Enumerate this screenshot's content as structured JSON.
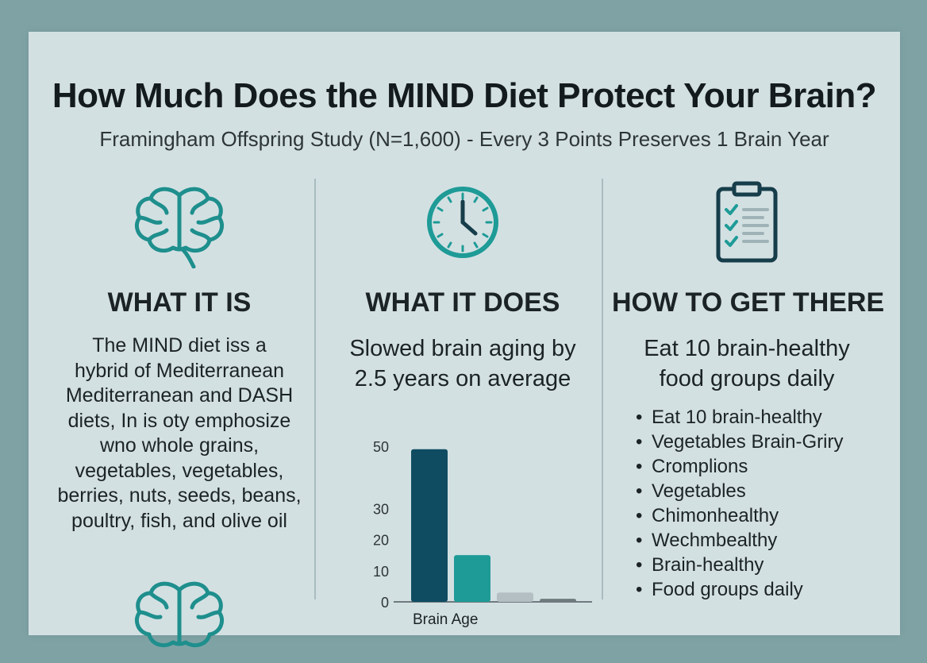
{
  "header": {
    "title": "How Much Does the MIND Diet Protect Your Brain?",
    "subtitle": "Framingham Offspring Study (N=1,600) - Every 3 Points Preserves 1 Brain Year"
  },
  "columns": {
    "what_it_is": {
      "icon": "brain-icon",
      "heading": "WHAT IT IS",
      "lines": [
        "The MIND diet iss a",
        "hybrid of Mediterranean",
        "Mediterranean and DASH",
        "diets, In is oty emphosize",
        "wno whole grains,",
        "vegetables, vegetables,",
        "berries, nuts, seeds, beans,",
        "poultry, fish, and olive oil"
      ]
    },
    "what_it_does": {
      "icon": "clock-icon",
      "heading": "WHAT IT DOES",
      "lines": [
        "Slowed brain aging by",
        "2.5 years on average"
      ]
    },
    "how_to_get_there": {
      "icon": "checklist-icon",
      "heading": "HOW TO GET THERE",
      "lines": [
        "Eat 10 brain-healthy",
        "food groups daily"
      ],
      "bullets": [
        "Eat 10 brain-healthy",
        "Vegetables Brain-Griry",
        "Cromplions",
        "Vegetables",
        "Chimonhealthy",
        "Wechmbealthy",
        "Brain-healthy",
        "Food groups daily"
      ]
    }
  },
  "colors": {
    "background": "#7fa3a5",
    "card": "#d3e0e2",
    "teal": "#1e9b97",
    "dark_teal": "#0f4c62",
    "gray": "#b3bfc2",
    "dark_gray": "#6f7a7e"
  },
  "chart_data": {
    "type": "bar",
    "categories": [
      "",
      "",
      "",
      ""
    ],
    "values": [
      49,
      15,
      3,
      1
    ],
    "colors": [
      "#0f4c62",
      "#1e9b97",
      "#b3bfc2",
      "#6f7a7e"
    ],
    "yticks": [
      "0",
      "10",
      "20",
      "30",
      "50"
    ],
    "ytick_values": [
      0,
      10,
      20,
      30,
      50
    ],
    "ylim": [
      0,
      52
    ],
    "xlabel": "Brain Age",
    "ylabel": "",
    "title": "",
    "grid": false
  }
}
